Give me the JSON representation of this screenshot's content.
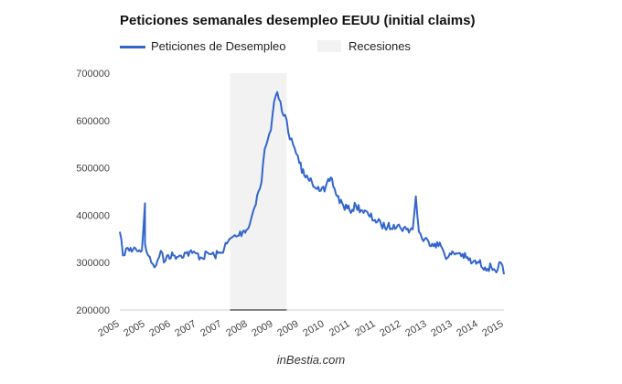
{
  "chart_data": {
    "type": "line",
    "title": "Peticiones semanales desempleo EEUU (initial claims)",
    "xlabel": "",
    "ylabel": "",
    "ylim": [
      200000,
      700000
    ],
    "yticks": [
      "700000",
      "600000",
      "500000",
      "400000",
      "300000",
      "200000"
    ],
    "xticks": [
      "2005",
      "2005",
      "2006",
      "2007",
      "2007",
      "2008",
      "2009",
      "2009",
      "2010",
      "2011",
      "2011",
      "2012",
      "2013",
      "2013",
      "2014",
      "2015"
    ],
    "xlim": [
      "2005-01",
      "2015-03"
    ],
    "grid": false,
    "legend_position": "top-left",
    "series": [
      {
        "name": "Peticiones de Desempleo",
        "color": "#3366cc",
        "x": [
          "2005-01",
          "2005-02",
          "2005-03",
          "2005-04",
          "2005-06",
          "2005-08",
          "2005-09",
          "2005-09",
          "2005-10",
          "2005-11",
          "2005-12",
          "2006-01",
          "2006-02",
          "2006-03",
          "2006-04",
          "2006-06",
          "2006-08",
          "2006-10",
          "2006-12",
          "2007-01",
          "2007-03",
          "2007-05",
          "2007-07",
          "2007-09",
          "2007-11",
          "2008-01",
          "2008-02",
          "2008-04",
          "2008-06",
          "2008-07",
          "2008-09",
          "2008-10",
          "2008-11",
          "2008-12",
          "2009-01",
          "2009-02",
          "2009-03",
          "2009-04",
          "2009-05",
          "2009-06",
          "2009-07",
          "2009-08",
          "2009-09",
          "2009-10",
          "2009-12",
          "2010-02",
          "2010-04",
          "2010-06",
          "2010-08",
          "2010-10",
          "2010-12",
          "2011-02",
          "2011-04",
          "2011-06",
          "2011-08",
          "2011-10",
          "2011-12",
          "2012-02",
          "2012-04",
          "2012-06",
          "2012-08",
          "2012-10",
          "2012-11",
          "2012-12",
          "2013-01",
          "2013-03",
          "2013-05",
          "2013-07",
          "2013-09",
          "2013-11",
          "2014-01",
          "2014-03",
          "2014-05",
          "2014-07",
          "2014-09",
          "2014-11",
          "2015-01",
          "2015-02",
          "2015-03"
        ],
        "values": [
          365000,
          315000,
          330000,
          325000,
          330000,
          325000,
          425000,
          340000,
          315000,
          300000,
          290000,
          305000,
          325000,
          300000,
          315000,
          315000,
          315000,
          320000,
          320000,
          320000,
          310000,
          320000,
          315000,
          320000,
          340000,
          355000,
          355000,
          365000,
          375000,
          400000,
          450000,
          470000,
          540000,
          560000,
          580000,
          640000,
          660000,
          640000,
          610000,
          600000,
          560000,
          550000,
          530000,
          510000,
          480000,
          470000,
          460000,
          450000,
          480000,
          440000,
          420000,
          410000,
          420000,
          410000,
          400000,
          390000,
          380000,
          375000,
          380000,
          375000,
          370000,
          370000,
          440000,
          365000,
          350000,
          345000,
          340000,
          335000,
          310000,
          320000,
          320000,
          310000,
          300000,
          300000,
          290000,
          290000,
          285000,
          300000,
          275000
        ]
      }
    ],
    "shading": [
      {
        "name": "Recesiones",
        "from": "2007-12",
        "to": "2009-06",
        "color": "#f2f2f2"
      }
    ]
  },
  "footer": "inBestia.com"
}
